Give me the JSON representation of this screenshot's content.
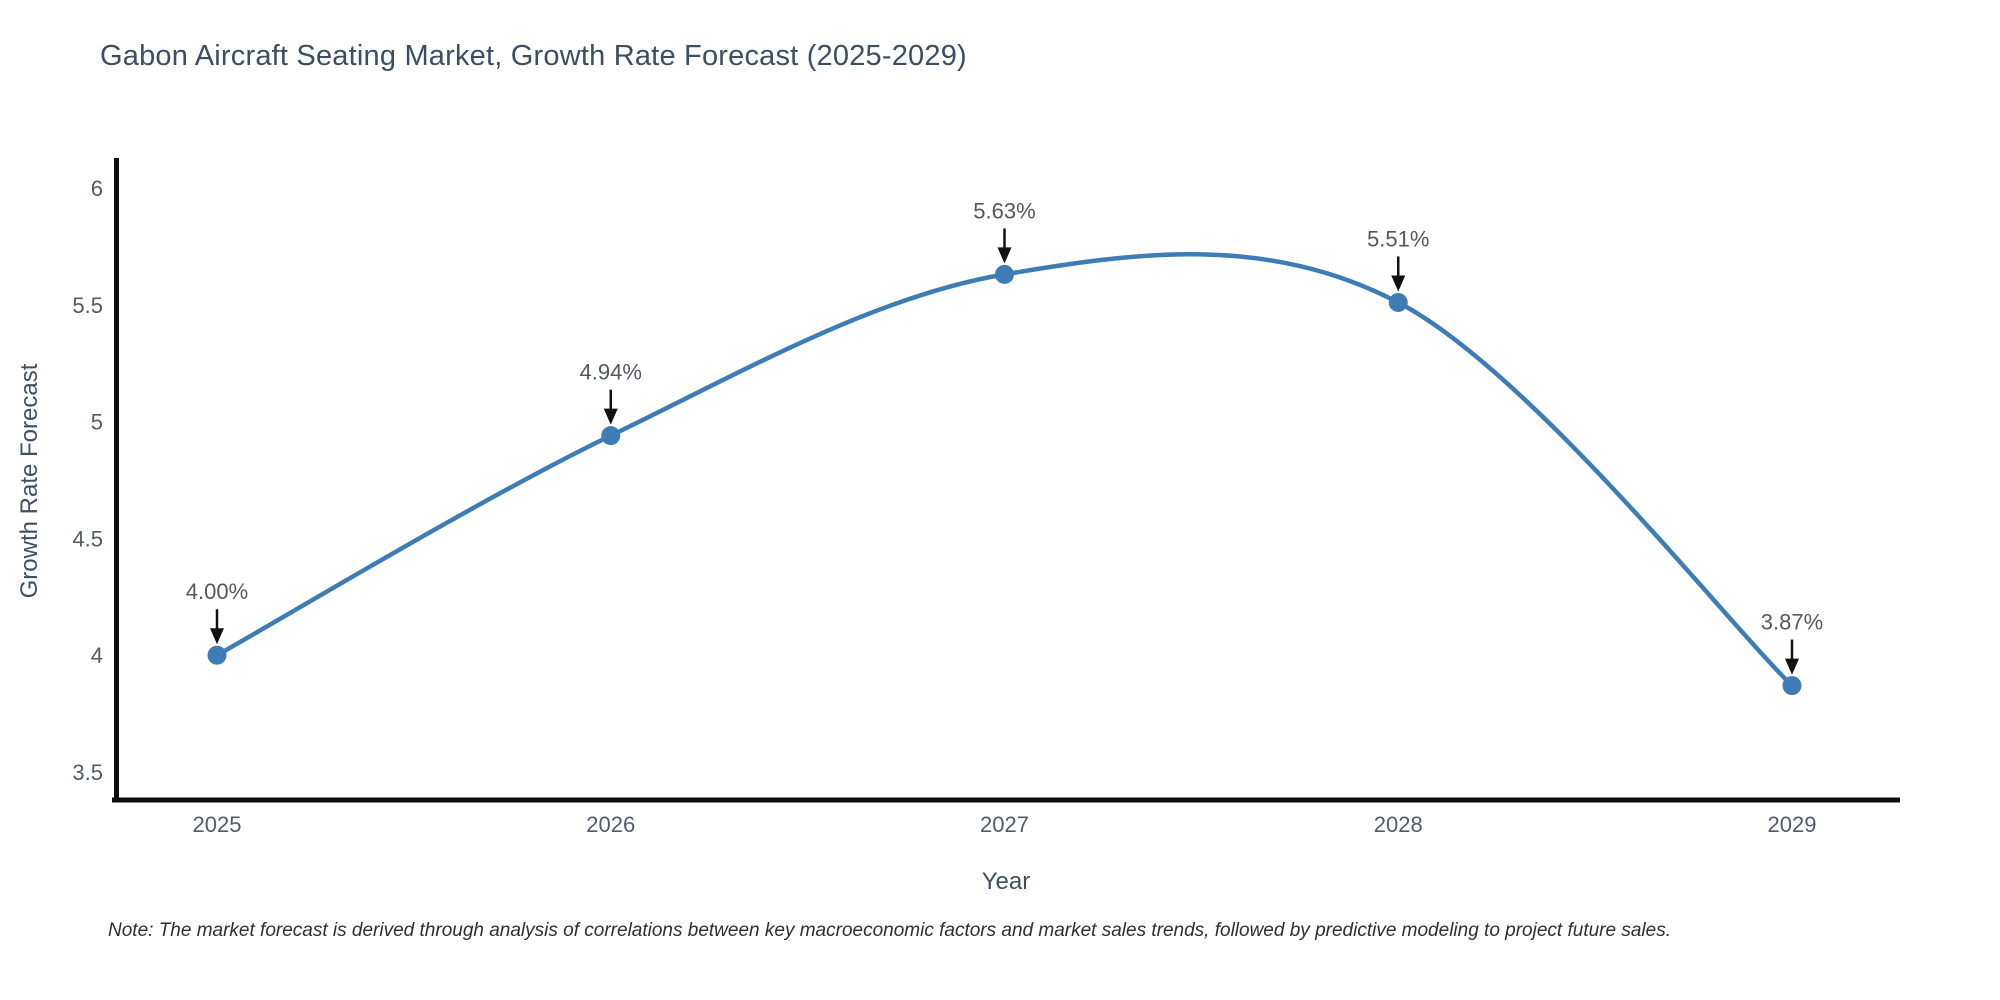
{
  "title": "Gabon Aircraft Seating Market, Growth Rate Forecast (2025-2029)",
  "note": "Note: The market forecast is derived through analysis of correlations between key macroeconomic factors and market sales trends, followed by predictive modeling to project future sales.",
  "chart_data": {
    "type": "line",
    "line_shape": "spline",
    "title": "Gabon Aircraft Seating Market, Growth Rate Forecast (2025-2029)",
    "xlabel": "Year",
    "ylabel": "Growth Rate Forecast",
    "x": [
      2025,
      2026,
      2027,
      2028,
      2029
    ],
    "values": [
      4.0,
      4.94,
      5.63,
      5.51,
      3.87
    ],
    "point_labels": [
      "4.00%",
      "4.94%",
      "5.63%",
      "5.51%",
      "3.87%"
    ],
    "xticklabels": [
      "2025",
      "2026",
      "2027",
      "2028",
      "2029"
    ],
    "yticks": [
      3.5,
      4,
      4.5,
      5,
      5.5,
      6
    ],
    "ylim": [
      3.38,
      6.12
    ],
    "xlim": [
      2024.74,
      2029.27
    ],
    "grid": false,
    "legend": "none",
    "colors": {
      "line": "#3E7CB6",
      "marker": "#3E7CB6",
      "annotation_text": "#55595e",
      "arrow": "#111111",
      "axis_line": "#0d0d0d",
      "tick_label": "#525b66",
      "title": "#3b4e63"
    }
  }
}
